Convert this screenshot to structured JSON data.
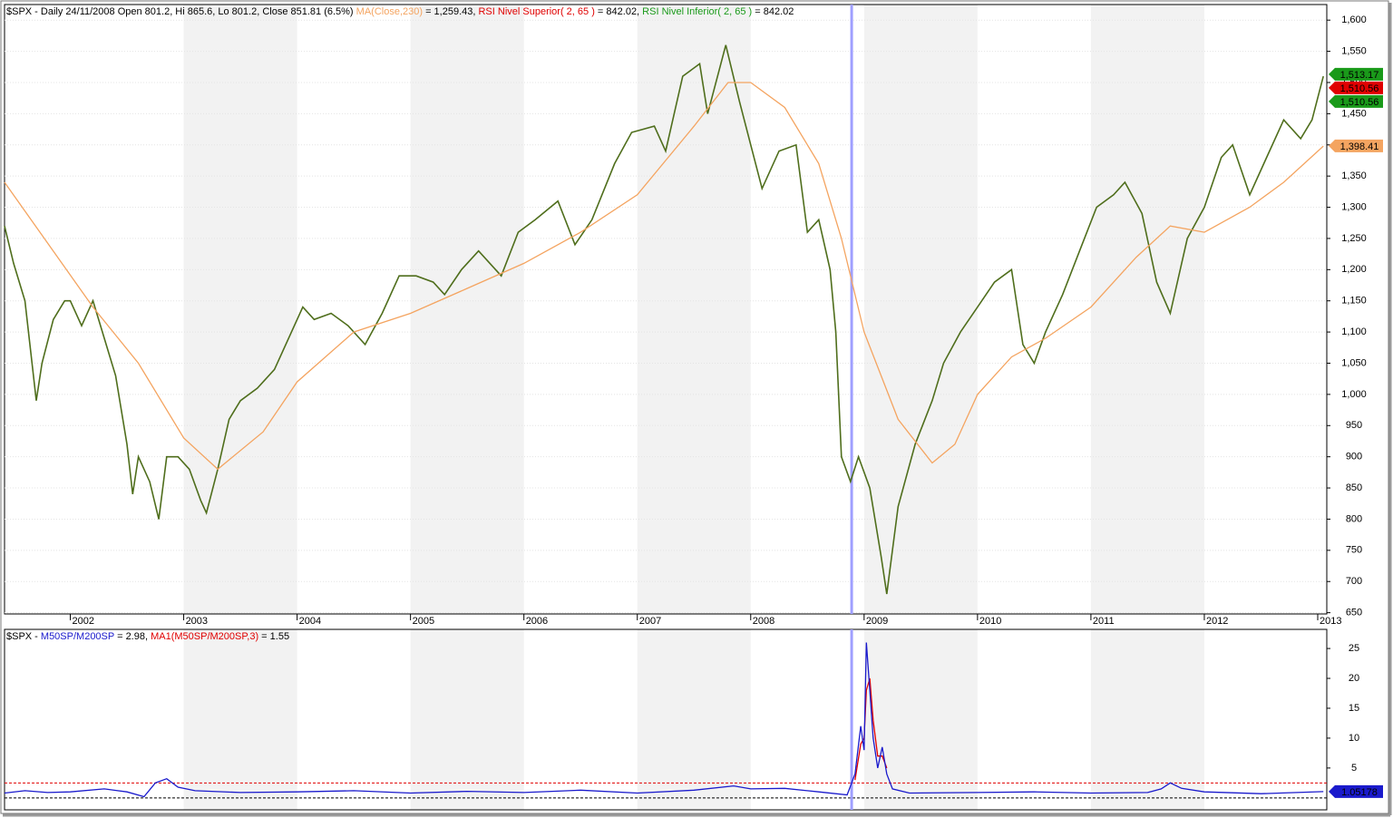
{
  "chart_data": [
    {
      "type": "line",
      "legend": [
        {
          "text": "$SPX - Daily 24/11/2008 Open 801.2, Hi 865.6, Lo 801.2, Close 851.81 (6.5%) ",
          "color": "#000000"
        },
        {
          "text": "MA(Close,230)",
          "color": "#f4a460"
        },
        {
          "text": " = 1,259.43, ",
          "color": "#000000"
        },
        {
          "text": "RSI Nivel Superior( 2, 65 )",
          "color": "#e00000"
        },
        {
          "text": " = 842.02, ",
          "color": "#000000"
        },
        {
          "text": "RSI Nivel Inferior( 2, 65 )",
          "color": "#1a9a1a"
        },
        {
          "text": " = 842.02",
          "color": "#000000"
        }
      ],
      "xlim": [
        2001.42,
        2013.08
      ],
      "xticks": [
        2002,
        2003,
        2004,
        2005,
        2006,
        2007,
        2008,
        2009,
        2010,
        2011,
        2012,
        2013
      ],
      "ylim": [
        648,
        1625
      ],
      "yticks": [
        650,
        700,
        750,
        800,
        850,
        900,
        950,
        {
          "value": 1000,
          "label": "1,000"
        },
        {
          "value": 1050,
          "label": "1,050"
        },
        {
          "value": 1100,
          "label": "1,100"
        },
        {
          "value": 1150,
          "label": "1,150"
        },
        {
          "value": 1200,
          "label": "1,200"
        },
        {
          "value": 1250,
          "label": "1,250"
        },
        {
          "value": 1300,
          "label": "1,300"
        },
        {
          "value": 1350,
          "label": "1,350"
        },
        {
          "value": 1400,
          "label": "1,400"
        },
        {
          "value": 1450,
          "label": "1,450"
        },
        {
          "value": 1500,
          "label": "1,500"
        },
        {
          "value": 1550,
          "label": "1,550"
        },
        {
          "value": 1600,
          "label": "1,600"
        }
      ],
      "grid": true,
      "cursor_x": 2008.89,
      "series": [
        {
          "color": "#4f6e1c",
          "x": [
            2001.42,
            2001.5,
            2001.6,
            2001.7,
            2001.75,
            2001.85,
            2001.95,
            2002.0,
            2002.1,
            2002.2,
            2002.3,
            2002.4,
            2002.5,
            2002.55,
            2002.6,
            2002.7,
            2002.78,
            2002.85,
            2002.95,
            2003.05,
            2003.15,
            2003.2,
            2003.3,
            2003.4,
            2003.5,
            2003.65,
            2003.8,
            2003.95,
            2004.05,
            2004.15,
            2004.3,
            2004.45,
            2004.6,
            2004.75,
            2004.9,
            2005.05,
            2005.2,
            2005.3,
            2005.45,
            2005.6,
            2005.8,
            2005.95,
            2006.1,
            2006.3,
            2006.45,
            2006.6,
            2006.8,
            2006.95,
            2007.15,
            2007.25,
            2007.4,
            2007.55,
            2007.62,
            2007.78,
            2007.9,
            2008.0,
            2008.1,
            2008.25,
            2008.4,
            2008.5,
            2008.6,
            2008.7,
            2008.75,
            2008.8,
            2008.88,
            2008.95,
            2009.05,
            2009.15,
            2009.2,
            2009.3,
            2009.45,
            2009.6,
            2009.7,
            2009.85,
            2010.0,
            2010.15,
            2010.3,
            2010.4,
            2010.5,
            2010.6,
            2010.75,
            2010.9,
            2011.05,
            2011.2,
            2011.3,
            2011.45,
            2011.58,
            2011.7,
            2011.85,
            2012.0,
            2012.15,
            2012.25,
            2012.4,
            2012.55,
            2012.7,
            2012.85,
            2012.95,
            2013.05
          ],
          "values": [
            1270,
            1210,
            1150,
            990,
            1050,
            1120,
            1150,
            1150,
            1110,
            1150,
            1090,
            1030,
            920,
            840,
            900,
            860,
            800,
            900,
            900,
            880,
            830,
            810,
            880,
            960,
            990,
            1010,
            1040,
            1100,
            1140,
            1120,
            1130,
            1110,
            1080,
            1130,
            1190,
            1190,
            1180,
            1160,
            1200,
            1230,
            1190,
            1260,
            1280,
            1310,
            1240,
            1280,
            1370,
            1420,
            1430,
            1390,
            1510,
            1530,
            1450,
            1560,
            1470,
            1400,
            1330,
            1390,
            1400,
            1260,
            1280,
            1200,
            1100,
            900,
            860,
            900,
            850,
            740,
            680,
            820,
            920,
            990,
            1050,
            1100,
            1140,
            1180,
            1200,
            1080,
            1050,
            1100,
            1160,
            1230,
            1300,
            1320,
            1340,
            1290,
            1180,
            1130,
            1250,
            1300,
            1380,
            1400,
            1320,
            1380,
            1440,
            1410,
            1440,
            1510
          ]
        },
        {
          "color": "#f4a460",
          "x": [
            2001.42,
            2002.2,
            2002.6,
            2003.0,
            2003.3,
            2003.7,
            2004.0,
            2004.5,
            2005.0,
            2005.5,
            2006.0,
            2006.5,
            2007.0,
            2007.5,
            2007.8,
            2008.0,
            2008.3,
            2008.6,
            2008.8,
            2009.0,
            2009.3,
            2009.6,
            2009.8,
            2010.0,
            2010.3,
            2010.6,
            2011.0,
            2011.4,
            2011.7,
            2012.0,
            2012.4,
            2012.7,
            2013.05
          ],
          "values": [
            1340,
            1140,
            1050,
            930,
            880,
            940,
            1020,
            1100,
            1130,
            1170,
            1210,
            1260,
            1320,
            1430,
            1500,
            1500,
            1460,
            1370,
            1250,
            1100,
            960,
            890,
            920,
            1000,
            1060,
            1090,
            1140,
            1220,
            1270,
            1260,
            1300,
            1340,
            1398
          ]
        }
      ],
      "value_tags": [
        {
          "value": 1513.17,
          "label": "1,513.17",
          "color": "#1a9a1a"
        },
        {
          "value": 1510.56,
          "label": "1,510.56",
          "color": "#e00000"
        },
        {
          "value": 1510.56,
          "label": "1,510.56",
          "color": "#1a9a1a"
        },
        {
          "value": 1398.41,
          "label": "1,398.41",
          "color": "#f4a460"
        }
      ]
    },
    {
      "type": "line",
      "legend": [
        {
          "text": "$SPX - ",
          "color": "#000000"
        },
        {
          "text": "M50SP/M200SP",
          "color": "#1a1acc"
        },
        {
          "text": " = 2.98, ",
          "color": "#000000"
        },
        {
          "text": "MA1(M50SP/M200SP,3)",
          "color": "#e00000"
        },
        {
          "text": " = 1.55",
          "color": "#000000"
        }
      ],
      "xlim": [
        2001.42,
        2013.08
      ],
      "ylim": [
        -2,
        28.2
      ],
      "yticks": [
        5,
        10,
        15,
        20,
        25
      ],
      "reference_lines": [
        {
          "value": 2.5,
          "color": "#e00000"
        },
        {
          "value": 0,
          "color": "#000000"
        }
      ],
      "series": [
        {
          "color": "#e00000",
          "x": [
            2001.42,
            2008.85,
            2008.92,
            2008.97,
            2009.0,
            2009.02,
            2009.05,
            2009.08,
            2009.12,
            2009.16,
            2009.2,
            2009.25
          ],
          "values": [
            null,
            null,
            3,
            9,
            10,
            18,
            20,
            13,
            7,
            7,
            5,
            null
          ]
        },
        {
          "color": "#1a1acc",
          "x": [
            2001.42,
            2001.6,
            2001.8,
            2002.0,
            2002.3,
            2002.5,
            2002.65,
            2002.75,
            2002.85,
            2002.95,
            2003.1,
            2003.5,
            2004.0,
            2004.5,
            2005.0,
            2005.5,
            2006.0,
            2006.5,
            2007.0,
            2007.5,
            2007.85,
            2008.0,
            2008.3,
            2008.6,
            2008.85,
            2008.92,
            2008.97,
            2009.0,
            2009.02,
            2009.05,
            2009.08,
            2009.12,
            2009.16,
            2009.2,
            2009.25,
            2009.4,
            2010.0,
            2010.5,
            2011.0,
            2011.5,
            2011.62,
            2011.7,
            2011.8,
            2012.0,
            2012.5,
            2013.05
          ],
          "values": [
            0.8,
            1.2,
            0.9,
            1.0,
            1.5,
            1.0,
            0.2,
            2.5,
            3.2,
            1.8,
            1.2,
            0.9,
            1.0,
            1.2,
            0.8,
            1.1,
            0.9,
            1.3,
            0.8,
            1.3,
            2.0,
            1.5,
            1.6,
            1.0,
            0.5,
            4,
            12,
            8,
            26,
            18,
            10,
            5,
            8.5,
            4,
            1.5,
            0.8,
            0.9,
            1.0,
            0.8,
            0.9,
            1.5,
            2.5,
            1.6,
            1.0,
            0.7,
            1.05
          ]
        }
      ],
      "value_tags": [
        {
          "value": 1.05178,
          "label": "1.05178",
          "color": "#1a1acc"
        }
      ]
    }
  ]
}
